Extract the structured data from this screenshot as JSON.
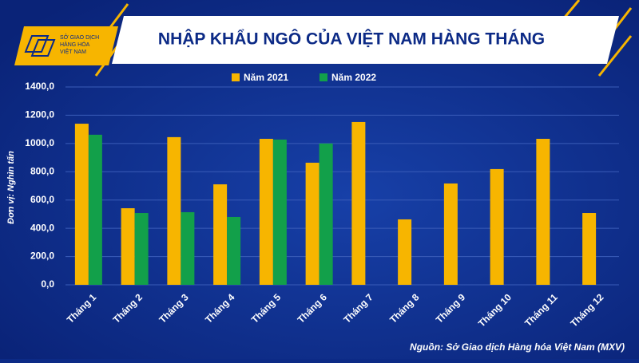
{
  "logo": {
    "lines": [
      "SỞ GIAO DỊCH",
      "HÀNG HÓA",
      "VIỆT NAM"
    ]
  },
  "chart_data": {
    "type": "bar",
    "title": "NHẬP KHẨU NGÔ CỦA VIỆT NAM HÀNG THÁNG",
    "ylabel": "Đơn vị: Nghìn tấn",
    "source": "Nguồn: Sở Giao dịch Hàng hóa Việt Nam (MXV)",
    "categories": [
      "Tháng 1",
      "Tháng 2",
      "Tháng 3",
      "Tháng 4",
      "Tháng 5",
      "Tháng 6",
      "Tháng 7",
      "Tháng 8",
      "Tháng 9",
      "Tháng 10",
      "Tháng 11",
      "Tháng 12"
    ],
    "series": [
      {
        "name": "Năm 2021",
        "color": "#f7b500",
        "values": [
          1140,
          542,
          1045,
          711,
          1033,
          864,
          1152,
          463,
          717,
          819,
          1033,
          508
        ]
      },
      {
        "name": "Năm 2022",
        "color": "#12a04a",
        "values": [
          1062,
          508,
          514,
          480,
          1028,
          1000,
          null,
          null,
          null,
          null,
          null,
          null
        ]
      }
    ],
    "ylim": [
      0,
      1400
    ],
    "yticks": [
      {
        "value": 0,
        "label": "0,0"
      },
      {
        "value": 200,
        "label": "200,0"
      },
      {
        "value": 400,
        "label": "400,0"
      },
      {
        "value": 600,
        "label": "600,0"
      },
      {
        "value": 800,
        "label": "800,0"
      },
      {
        "value": 1000,
        "label": "1000,0"
      },
      {
        "value": 1200,
        "label": "1200,0"
      },
      {
        "value": 1400,
        "label": "1400,0"
      }
    ],
    "grid": true,
    "legend": "top"
  }
}
